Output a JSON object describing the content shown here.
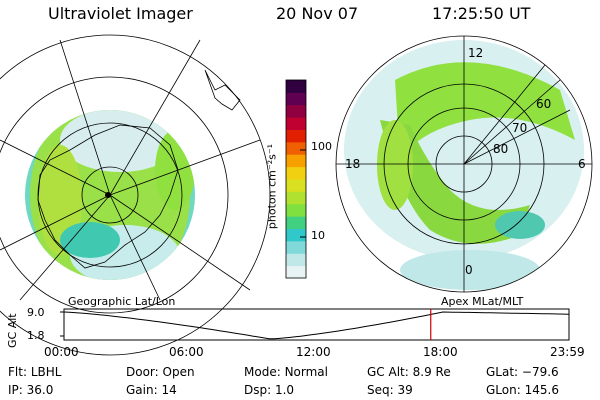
{
  "header": {
    "title": "Ultraviolet Imager",
    "date": "20 Nov 07",
    "time": "17:25:50 UT"
  },
  "colorbar": {
    "unit_label": "photon cm⁻²s⁻¹",
    "ticks": [
      "100",
      "10"
    ],
    "colors": [
      "#e8f4f4",
      "#c0e8e8",
      "#80d8d8",
      "#30c8c8",
      "#40d080",
      "#80e040",
      "#b0e030",
      "#d8e020",
      "#f0d010",
      "#f8a000",
      "#f06000",
      "#e02000",
      "#c00030",
      "#900040",
      "#600050",
      "#300040"
    ]
  },
  "geo_map": {
    "label": "Geographic Lat/Lon"
  },
  "mag_map": {
    "label": "Apex MLat/MLT",
    "mlt_labels": {
      "top": "12",
      "left": "18",
      "right": "6",
      "bottom": "0"
    },
    "lat_labels": [
      "60",
      "70",
      "80"
    ]
  },
  "timeline": {
    "ylabel": "GC Alt",
    "y_ticks": [
      "9.0",
      "1.8"
    ],
    "x_ticks": [
      "00:00",
      "06:00",
      "12:00",
      "18:00",
      "23:59"
    ],
    "current_marker_time_h": 17.43,
    "marker_color": "#cc0000"
  },
  "footer": {
    "filter_label": "Flt:",
    "filter_value": "LBHL",
    "door_label": "Door:",
    "door_value": "Open",
    "mode_label": "Mode:",
    "mode_value": "Normal",
    "gcalt_label": "GC Alt:",
    "gcalt_value": "8.9 Re",
    "glat_label": "GLat:",
    "glat_value": "−79.6",
    "ip_label": "IP:",
    "ip_value": "36.0",
    "gain_label": "Gain:",
    "gain_value": "14",
    "dsp_label": "Dsp:",
    "dsp_value": "1.0",
    "seq_label": "Seq:",
    "seq_value": "39",
    "glon_label": "GLon:",
    "glon_value": "145.6"
  }
}
